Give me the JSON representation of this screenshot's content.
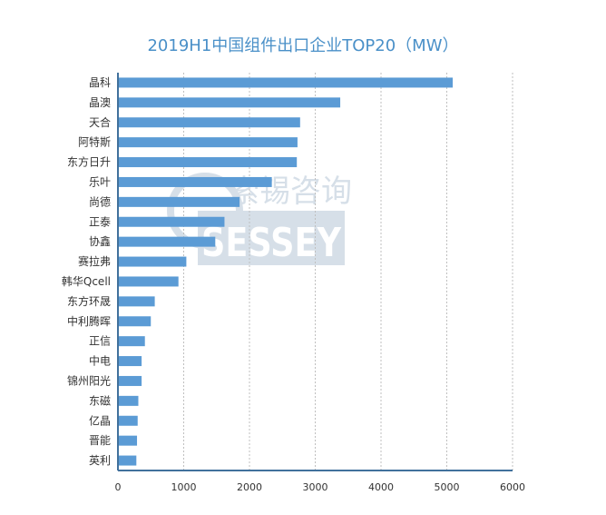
{
  "title": "2019H1中国组件出口企业TOP20（MW）",
  "watermark": {
    "cn": "索锡咨询",
    "en": "SESSEY"
  },
  "chart_data": {
    "type": "bar",
    "orientation": "horizontal",
    "title": "2019H1中国组件出口企业TOP20（MW）",
    "categories": [
      "晶科",
      "晶澳",
      "天合",
      "阿特斯",
      "东方日升",
      "乐叶",
      "尚德",
      "正泰",
      "协鑫",
      "赛拉弗",
      "韩华Qcell",
      "东方环晟",
      "中利腾晖",
      "正信",
      "中电",
      "锦州阳光",
      "东磁",
      "亿晶",
      "晋能",
      "英利"
    ],
    "values": [
      5090,
      3380,
      2770,
      2730,
      2720,
      2340,
      1850,
      1620,
      1480,
      1040,
      920,
      560,
      500,
      410,
      360,
      360,
      310,
      300,
      290,
      280
    ],
    "xlim": [
      0,
      6000
    ],
    "xticks": [
      0,
      1000,
      2000,
      3000,
      4000,
      5000,
      6000
    ],
    "grid": "vertical-dotted",
    "bar_color": "#5b9bd5",
    "axis_color": "#41719c"
  }
}
